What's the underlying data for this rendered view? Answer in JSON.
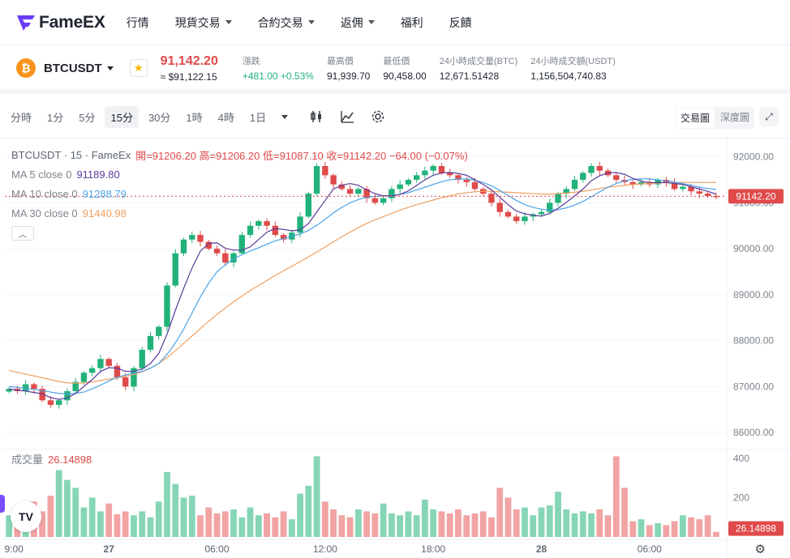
{
  "brand": {
    "name": "FameEX",
    "accent": "#6a3df5"
  },
  "nav": {
    "items": [
      {
        "label": "行情",
        "dropdown": false
      },
      {
        "label": "現貨交易",
        "dropdown": true
      },
      {
        "label": "合約交易",
        "dropdown": true
      },
      {
        "label": "返佣",
        "dropdown": true
      },
      {
        "label": "福利",
        "dropdown": false
      },
      {
        "label": "反饋",
        "dropdown": false
      }
    ]
  },
  "ticker": {
    "pair": "BTCUSDT",
    "coin_icon": "bitcoin-icon",
    "last_price": "91,142.20",
    "usd_price": "≈ $91,122.15",
    "stats": [
      {
        "label": "漲跌",
        "value": "+481.00 +0.53%",
        "up": true
      },
      {
        "label": "最高價",
        "value": "91,939.70"
      },
      {
        "label": "最低價",
        "value": "90,458.00"
      },
      {
        "label": "24小時成交量(BTC)",
        "value": "12,671.51428"
      },
      {
        "label": "24小時成交額(USDT)",
        "value": "1,156,504,740.83"
      }
    ]
  },
  "toolbar": {
    "timeframes": [
      "分時",
      "1分",
      "5分",
      "15分",
      "30分",
      "1時",
      "4時",
      "1日"
    ],
    "active_timeframe": "15分",
    "views": [
      "交易圖",
      "深度圖"
    ],
    "active_view": "交易圖"
  },
  "legend": {
    "title": "BTCUSDT · 15 · FameEx",
    "ohlc": "開=91206.20 高=91206.20 低=91087.10 收=91142.20 −64.00 (−0.07%)",
    "ma": [
      {
        "label": "MA 5 close 0",
        "value": "91189.80",
        "color": "#5b3a9a"
      },
      {
        "label": "MA 10 close 0",
        "value": "91288.79",
        "color": "#4aa3e8"
      },
      {
        "label": "MA 30 close 0",
        "value": "91440.98",
        "color": "#f0a060"
      }
    ],
    "volume_label": "成交量",
    "volume_value": "26.14898"
  },
  "colors": {
    "up": "#21b27a",
    "down": "#e04a4a",
    "vol_up": "#86d6b6",
    "vol_down": "#f2a3a3"
  },
  "chart_data": {
    "type": "candlestick",
    "price_axis_ticks": [
      "92000.00",
      "91000.00",
      "90000.00",
      "89000.00",
      "88000.00",
      "87000.00",
      "86000.00"
    ],
    "volume_axis_ticks": [
      "400",
      "200"
    ],
    "time_axis_ticks": [
      "9:00",
      "27",
      "06:00",
      "12:00",
      "18:00",
      "28",
      "06:00"
    ],
    "current_price_label": "91142.20",
    "current_volume_label": "26.14898",
    "price_range": [
      85700,
      92400
    ],
    "volume_range": [
      0,
      420
    ],
    "close_path": [
      86950,
      86900,
      87050,
      86950,
      86700,
      86600,
      86700,
      86900,
      87100,
      87300,
      87400,
      87600,
      87450,
      87200,
      87000,
      87400,
      87800,
      88100,
      88300,
      89200,
      89900,
      90200,
      90300,
      90150,
      90000,
      89900,
      89700,
      89900,
      90300,
      90500,
      90600,
      90500,
      90300,
      90200,
      90350,
      90700,
      91200,
      91800,
      91600,
      91400,
      91300,
      91200,
      91300,
      91100,
      91000,
      91100,
      91300,
      91400,
      91500,
      91600,
      91700,
      91800,
      91650,
      91600,
      91500,
      91450,
      91300,
      91200,
      91000,
      90800,
      90700,
      90600,
      90700,
      90750,
      90800,
      91000,
      91200,
      91300,
      91500,
      91650,
      91800,
      91700,
      91600,
      91500,
      91450,
      91400,
      91450,
      91400,
      91500,
      91450,
      91300,
      91350,
      91250,
      91200,
      91150,
      91142
    ],
    "ma5": [
      86950,
      86920,
      86900,
      86870,
      86840,
      86760,
      86720,
      86750,
      86850,
      87000,
      87150,
      87330,
      87410,
      87400,
      87330,
      87330,
      87380,
      87500,
      87720,
      88140,
      88660,
      89140,
      89580,
      89950,
      90110,
      90130,
      90010,
      89970,
      89970,
      90040,
      90200,
      90360,
      90440,
      90420,
      90390,
      90410,
      90550,
      90800,
      91050,
      91300,
      91380,
      91420,
      91380,
      91280,
      91200,
      91150,
      91150,
      91180,
      91260,
      91380,
      91500,
      91600,
      91650,
      91660,
      91640,
      91600,
      91500,
      91400,
      91280,
      91120,
      90960,
      90820,
      90760,
      90730,
      90710,
      90770,
      90880,
      91010,
      91150,
      91300,
      91480,
      91590,
      91650,
      91660,
      91620,
      91530,
      91470,
      91440,
      91440,
      91440,
      91420,
      91400,
      91350,
      91300,
      91250,
      91190
    ],
    "ma10": [
      87000,
      86980,
      86960,
      86940,
      86910,
      86880,
      86850,
      86840,
      86850,
      86880,
      86950,
      87030,
      87120,
      87200,
      87250,
      87290,
      87330,
      87400,
      87500,
      87700,
      87950,
      88250,
      88600,
      88950,
      89250,
      89500,
      89650,
      89780,
      89870,
      89950,
      90020,
      90100,
      90170,
      90220,
      90270,
      90320,
      90400,
      90510,
      90640,
      90780,
      90900,
      91000,
      91070,
      91120,
      91140,
      91150,
      91160,
      91180,
      91220,
      91280,
      91340,
      91400,
      91460,
      91500,
      91520,
      91520,
      91490,
      91440,
      91370,
      91270,
      91160,
      91050,
      90960,
      90900,
      90860,
      90840,
      90850,
      90890,
      90950,
      91030,
      91130,
      91240,
      91340,
      91420,
      91480,
      91510,
      91520,
      91520,
      91500,
      91480,
      91450,
      91420,
      91380,
      91340,
      91310,
      91289
    ],
    "ma30": [
      87350,
      87310,
      87270,
      87230,
      87190,
      87150,
      87110,
      87080,
      87070,
      87080,
      87100,
      87130,
      87160,
      87190,
      87220,
      87260,
      87320,
      87400,
      87500,
      87630,
      87780,
      87940,
      88100,
      88260,
      88420,
      88570,
      88710,
      88840,
      88970,
      89090,
      89200,
      89310,
      89420,
      89520,
      89620,
      89720,
      89820,
      89930,
      90040,
      90150,
      90260,
      90360,
      90460,
      90550,
      90630,
      90700,
      90770,
      90840,
      90900,
      90960,
      91010,
      91060,
      91110,
      91150,
      91190,
      91220,
      91240,
      91250,
      91250,
      91240,
      91230,
      91220,
      91210,
      91200,
      91190,
      91190,
      91200,
      91210,
      91230,
      91250,
      91280,
      91310,
      91340,
      91360,
      91380,
      91400,
      91410,
      91420,
      91430,
      91440,
      91440,
      91445,
      91445,
      91443,
      91442,
      91441
    ],
    "volumes": [
      110,
      140,
      95,
      180,
      130,
      210,
      340,
      290,
      250,
      150,
      200,
      130,
      170,
      115,
      130,
      110,
      130,
      100,
      180,
      330,
      270,
      200,
      210,
      110,
      150,
      120,
      130,
      140,
      100,
      150,
      110,
      120,
      100,
      130,
      90,
      220,
      260,
      410,
      180,
      140,
      110,
      100,
      140,
      130,
      120,
      170,
      120,
      110,
      130,
      110,
      190,
      140,
      130,
      120,
      140,
      110,
      120,
      130,
      100,
      250,
      200,
      140,
      150,
      110,
      150,
      160,
      230,
      140,
      120,
      130,
      120,
      140,
      110,
      410,
      250,
      80,
      90,
      60,
      70,
      60,
      80,
      110,
      100,
      90,
      110,
      26
    ]
  }
}
